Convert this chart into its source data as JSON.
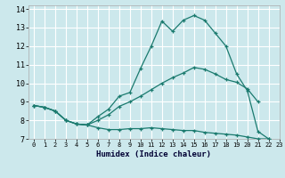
{
  "xlabel": "Humidex (Indice chaleur)",
  "bg_color": "#cce8ec",
  "grid_color": "#ffffff",
  "line_color": "#1a7a6e",
  "xlim": [
    -0.5,
    23
  ],
  "ylim": [
    7,
    14.2
  ],
  "xticks": [
    0,
    1,
    2,
    3,
    4,
    5,
    6,
    7,
    8,
    9,
    10,
    11,
    12,
    13,
    14,
    15,
    16,
    17,
    18,
    19,
    20,
    21,
    22,
    23
  ],
  "yticks": [
    7,
    8,
    9,
    10,
    11,
    12,
    13,
    14
  ],
  "series": [
    {
      "x": [
        0,
        1,
        2,
        3,
        4,
        5,
        6,
        7,
        8,
        9,
        10,
        11,
        12,
        13,
        14,
        15,
        16,
        17,
        18,
        19,
        20,
        21,
        22
      ],
      "y": [
        8.8,
        8.7,
        8.5,
        8.0,
        7.8,
        7.75,
        8.2,
        8.6,
        9.3,
        9.5,
        10.8,
        12.0,
        13.35,
        12.8,
        13.4,
        13.65,
        13.4,
        12.7,
        12.0,
        10.5,
        9.6,
        7.4,
        7.0
      ]
    },
    {
      "x": [
        0,
        1,
        2,
        3,
        4,
        5,
        6,
        7,
        8,
        9,
        10,
        11,
        12,
        13,
        14,
        15,
        16,
        17,
        18,
        19,
        20,
        21
      ],
      "y": [
        8.8,
        8.7,
        8.5,
        8.0,
        7.8,
        7.75,
        8.0,
        8.3,
        8.75,
        9.0,
        9.3,
        9.65,
        10.0,
        10.3,
        10.55,
        10.85,
        10.75,
        10.5,
        10.2,
        10.05,
        9.7,
        9.0
      ]
    },
    {
      "x": [
        0,
        1,
        2,
        3,
        4,
        5,
        6,
        7,
        8,
        9,
        10,
        11,
        12,
        13,
        14,
        15,
        16,
        17,
        18,
        19,
        20,
        21,
        22
      ],
      "y": [
        8.8,
        8.7,
        8.5,
        8.0,
        7.8,
        7.75,
        7.6,
        7.5,
        7.5,
        7.55,
        7.55,
        7.6,
        7.55,
        7.5,
        7.45,
        7.45,
        7.35,
        7.3,
        7.25,
        7.2,
        7.1,
        7.0,
        7.0
      ]
    }
  ]
}
